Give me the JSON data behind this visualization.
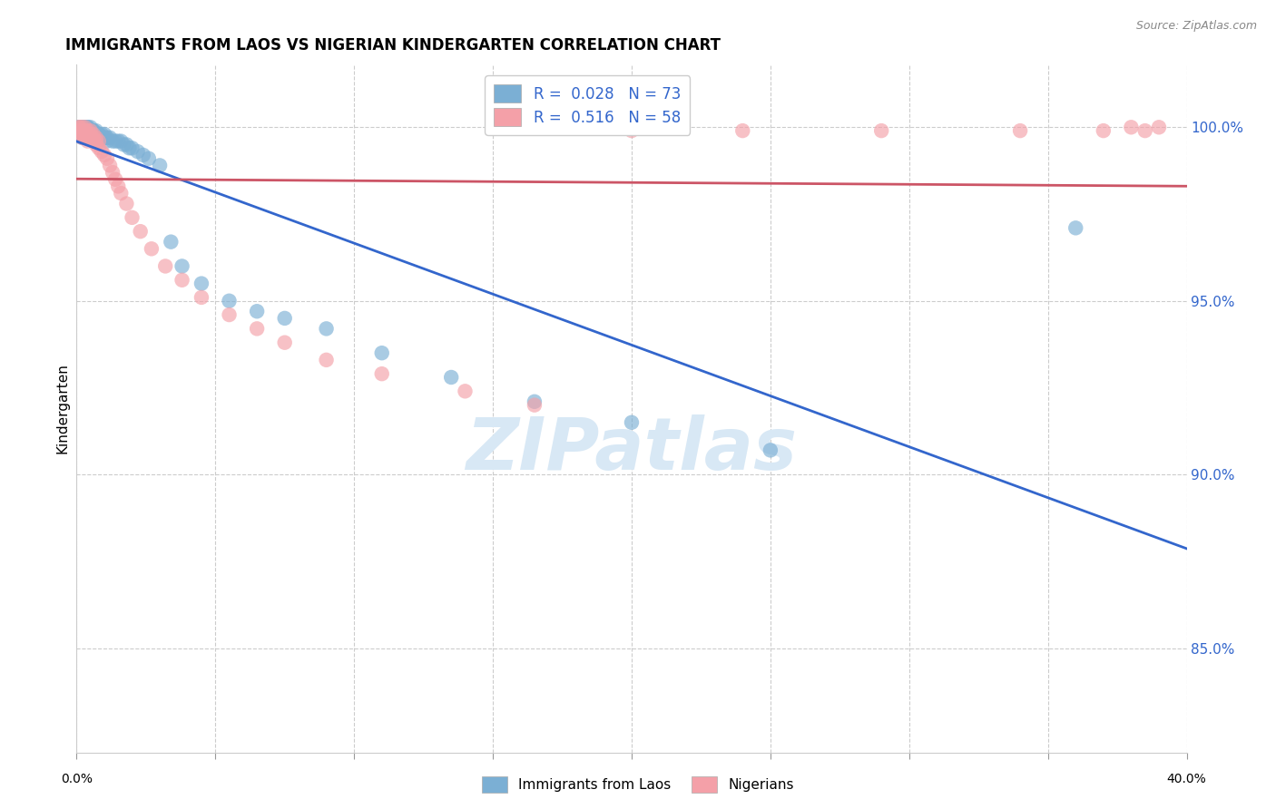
{
  "title": "IMMIGRANTS FROM LAOS VS NIGERIAN KINDERGARTEN CORRELATION CHART",
  "source": "Source: ZipAtlas.com",
  "ylabel": "Kindergarten",
  "ytick_labels": [
    "85.0%",
    "90.0%",
    "95.0%",
    "100.0%"
  ],
  "ytick_values": [
    0.85,
    0.9,
    0.95,
    1.0
  ],
  "xlim": [
    0.0,
    0.4
  ],
  "ylim": [
    0.82,
    1.018
  ],
  "color_laos": "#7BAFD4",
  "color_nigeria": "#F4A0A8",
  "color_line_laos": "#3366CC",
  "color_line_nigeria": "#CC5566",
  "watermark_color": "#D8E8F5",
  "laos_x": [
    0.001,
    0.001,
    0.001,
    0.001,
    0.002,
    0.002,
    0.002,
    0.002,
    0.002,
    0.002,
    0.003,
    0.003,
    0.003,
    0.003,
    0.003,
    0.003,
    0.003,
    0.003,
    0.004,
    0.004,
    0.004,
    0.004,
    0.004,
    0.004,
    0.005,
    0.005,
    0.005,
    0.005,
    0.005,
    0.005,
    0.006,
    0.006,
    0.006,
    0.006,
    0.007,
    0.007,
    0.007,
    0.007,
    0.008,
    0.008,
    0.008,
    0.009,
    0.009,
    0.01,
    0.01,
    0.011,
    0.011,
    0.012,
    0.013,
    0.014,
    0.015,
    0.016,
    0.017,
    0.018,
    0.019,
    0.02,
    0.022,
    0.024,
    0.026,
    0.03,
    0.034,
    0.038,
    0.045,
    0.055,
    0.065,
    0.075,
    0.09,
    0.11,
    0.135,
    0.165,
    0.2,
    0.25,
    0.36
  ],
  "laos_y": [
    1.0,
    1.0,
    0.999,
    0.998,
    1.0,
    1.0,
    0.999,
    0.999,
    0.998,
    0.997,
    1.0,
    1.0,
    0.999,
    0.999,
    0.998,
    0.998,
    0.997,
    0.997,
    1.0,
    1.0,
    0.999,
    0.998,
    0.998,
    0.997,
    1.0,
    0.999,
    0.999,
    0.998,
    0.997,
    0.997,
    0.999,
    0.999,
    0.998,
    0.997,
    0.999,
    0.998,
    0.998,
    0.997,
    0.998,
    0.998,
    0.997,
    0.998,
    0.997,
    0.998,
    0.997,
    0.997,
    0.996,
    0.997,
    0.996,
    0.996,
    0.996,
    0.996,
    0.995,
    0.995,
    0.994,
    0.994,
    0.993,
    0.992,
    0.991,
    0.989,
    0.967,
    0.96,
    0.955,
    0.95,
    0.947,
    0.945,
    0.942,
    0.935,
    0.928,
    0.921,
    0.915,
    0.907,
    0.971
  ],
  "nigeria_x": [
    0.001,
    0.001,
    0.001,
    0.001,
    0.002,
    0.002,
    0.002,
    0.002,
    0.002,
    0.003,
    0.003,
    0.003,
    0.003,
    0.004,
    0.004,
    0.004,
    0.004,
    0.005,
    0.005,
    0.005,
    0.006,
    0.006,
    0.006,
    0.007,
    0.007,
    0.007,
    0.008,
    0.008,
    0.009,
    0.01,
    0.011,
    0.012,
    0.013,
    0.014,
    0.015,
    0.016,
    0.018,
    0.02,
    0.023,
    0.027,
    0.032,
    0.038,
    0.045,
    0.055,
    0.065,
    0.075,
    0.09,
    0.11,
    0.14,
    0.165,
    0.2,
    0.24,
    0.29,
    0.34,
    0.37,
    0.38,
    0.385,
    0.39
  ],
  "nigeria_y": [
    1.0,
    1.0,
    0.999,
    0.998,
    1.0,
    0.999,
    0.999,
    0.998,
    0.997,
    1.0,
    0.999,
    0.998,
    0.997,
    0.999,
    0.998,
    0.997,
    0.996,
    0.999,
    0.998,
    0.997,
    0.998,
    0.997,
    0.996,
    0.997,
    0.996,
    0.995,
    0.996,
    0.994,
    0.993,
    0.992,
    0.991,
    0.989,
    0.987,
    0.985,
    0.983,
    0.981,
    0.978,
    0.974,
    0.97,
    0.965,
    0.96,
    0.956,
    0.951,
    0.946,
    0.942,
    0.938,
    0.933,
    0.929,
    0.924,
    0.92,
    0.999,
    0.999,
    0.999,
    0.999,
    0.999,
    1.0,
    0.999,
    1.0
  ]
}
